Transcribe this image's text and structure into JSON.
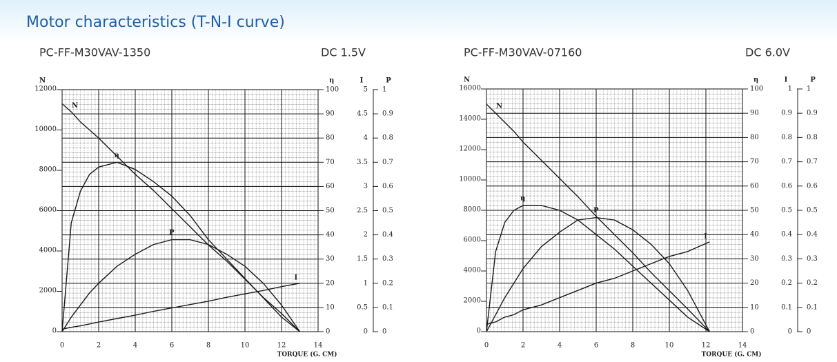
{
  "header": {
    "title": "Motor characteristics (T-N-I curve)"
  },
  "chart_data": [
    {
      "type": "line",
      "title": "PC-FF-M30VAV-1350",
      "subtitle": "DC 1.5V",
      "x_label": "TORQUE (G. CM)",
      "y_label": "N",
      "y2_label": "η",
      "y3_label": "I",
      "y4_label": "P",
      "x": [
        0,
        0.5,
        1,
        1.5,
        2,
        3,
        4,
        5,
        6,
        7,
        8,
        9,
        10,
        11,
        12,
        13
      ],
      "xlim": [
        0,
        14
      ],
      "xticks": [
        0,
        2,
        4,
        6,
        8,
        10,
        12,
        14
      ],
      "ylim": [
        0,
        12000
      ],
      "yticks": [
        0,
        2000,
        4000,
        6000,
        8000,
        10000,
        12000
      ],
      "y2lim": [
        0,
        100
      ],
      "y2ticks": [
        0,
        10,
        20,
        30,
        40,
        50,
        60,
        70,
        80,
        90,
        100
      ],
      "y3lim": [
        0,
        5
      ],
      "y3ticks": [
        0,
        0.5,
        1,
        1.5,
        2,
        2.5,
        3,
        3.5,
        4,
        4.5,
        5
      ],
      "y4lim": [
        0,
        1
      ],
      "y4ticks": [
        0,
        0.1,
        0.2,
        0.3,
        0.4,
        0.5,
        0.6,
        0.7,
        0.8,
        0.9,
        1
      ],
      "grid": true,
      "series": [
        {
          "name": "N",
          "axis": "y",
          "color": "#1a1a1a",
          "values": [
            11300,
            10900,
            10400,
            10000,
            9600,
            8700,
            7800,
            7000,
            6100,
            5200,
            4300,
            3500,
            2600,
            1700,
            900,
            0
          ]
        },
        {
          "name": "η",
          "axis": "y2",
          "color": "#1a1a1a",
          "values": [
            0,
            45,
            58,
            65,
            68,
            70,
            67,
            62,
            56,
            48,
            38,
            30,
            22,
            14,
            6,
            0
          ]
        },
        {
          "name": "I",
          "axis": "y3",
          "color": "#1a1a1a",
          "values": [
            0.05,
            0.09,
            0.12,
            0.16,
            0.2,
            0.27,
            0.34,
            0.42,
            0.49,
            0.56,
            0.63,
            0.71,
            0.78,
            0.85,
            0.93,
            1.0
          ]
        },
        {
          "name": "P",
          "axis": "y4",
          "color": "#1a1a1a",
          "values": [
            0,
            0.06,
            0.11,
            0.16,
            0.2,
            0.27,
            0.32,
            0.36,
            0.38,
            0.38,
            0.36,
            0.32,
            0.27,
            0.2,
            0.11,
            0
          ]
        }
      ]
    },
    {
      "type": "line",
      "title": "PC-FF-M30VAV-07160",
      "subtitle": "DC 6.0V",
      "x_label": "TORQUE (G. CM)",
      "y_label": "N",
      "y2_label": "η",
      "y3_label": "I",
      "y4_label": "P",
      "x": [
        0,
        0.5,
        1,
        1.5,
        2,
        3,
        4,
        5,
        6,
        7,
        8,
        9,
        10,
        11,
        12.2
      ],
      "xlim": [
        0,
        14
      ],
      "xticks": [
        0,
        2,
        4,
        6,
        8,
        10,
        12,
        14
      ],
      "ylim": [
        0,
        16000
      ],
      "yticks": [
        0,
        2000,
        4000,
        6000,
        8000,
        10000,
        12000,
        14000,
        16000
      ],
      "y2lim": [
        0,
        100
      ],
      "y2ticks": [
        0,
        10,
        20,
        30,
        40,
        50,
        60,
        70,
        80,
        90,
        100
      ],
      "y3lim": [
        0,
        1
      ],
      "y3ticks": [
        0,
        0.1,
        0.2,
        0.3,
        0.4,
        0.5,
        0.6,
        0.7,
        0.8,
        0.9,
        1
      ],
      "y4lim": [
        0,
        1
      ],
      "y4ticks": [
        0,
        0.1,
        0.2,
        0.3,
        0.4,
        0.5,
        0.6,
        0.7,
        0.8,
        0.9,
        1
      ],
      "grid": true,
      "series": [
        {
          "name": "N",
          "axis": "y",
          "color": "#1a1a1a",
          "values": [
            15000,
            14400,
            13800,
            13200,
            12500,
            11300,
            10100,
            8900,
            7600,
            6400,
            5200,
            3900,
            2700,
            1500,
            0
          ]
        },
        {
          "name": "η",
          "axis": "y2",
          "color": "#1a1a1a",
          "values": [
            0,
            33,
            45,
            50,
            52,
            52,
            50,
            46,
            40,
            34,
            27,
            20,
            13,
            6,
            0
          ]
        },
        {
          "name": "I",
          "axis": "y3",
          "color": "#1a1a1a",
          "values": [
            0.03,
            0.04,
            0.06,
            0.07,
            0.09,
            0.11,
            0.14,
            0.17,
            0.2,
            0.22,
            0.25,
            0.28,
            0.31,
            0.33,
            0.37
          ]
        },
        {
          "name": "P",
          "axis": "y4",
          "color": "#1a1a1a",
          "values": [
            0,
            0.07,
            0.14,
            0.2,
            0.26,
            0.35,
            0.41,
            0.46,
            0.47,
            0.46,
            0.42,
            0.36,
            0.28,
            0.17,
            0
          ]
        }
      ]
    }
  ]
}
